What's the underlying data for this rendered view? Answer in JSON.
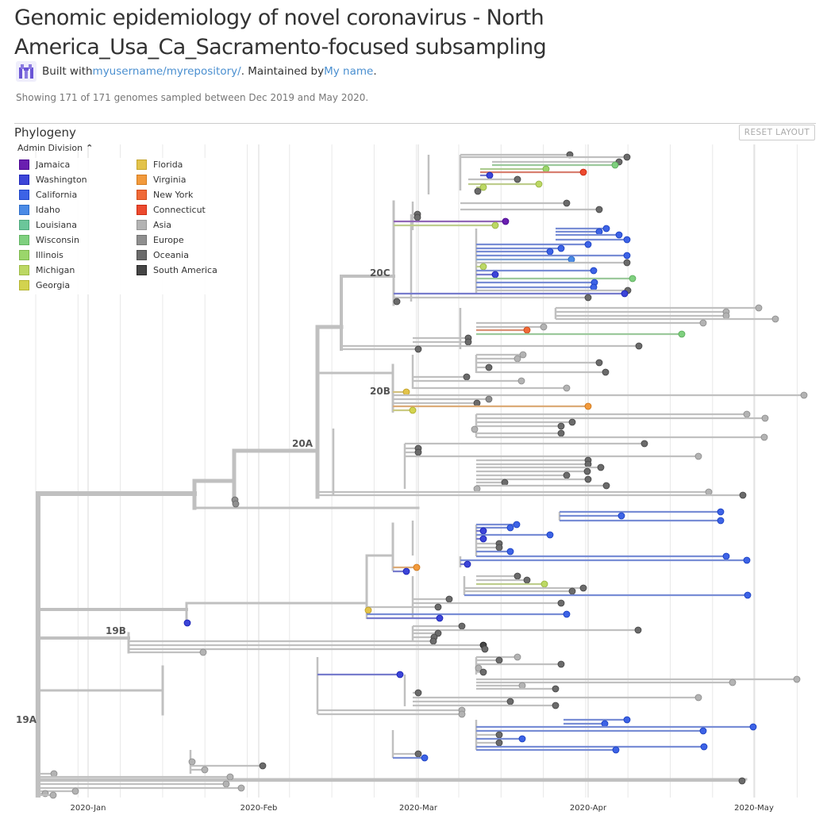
{
  "header": {
    "title": "Genomic epidemiology of novel coronavirus - North America_Usa_Ca_Sacramento-focused subsampling",
    "built_with": "Built with ",
    "repo_link": "myusername/myrepository/",
    "maintained_by": ". Maintained by ",
    "maintainer_link": "My name",
    "period": "."
  },
  "summary": "Showing 171 of 171 genomes sampled between Dec 2019 and May 2020.",
  "panel": {
    "title": "Phylogeny",
    "reset_label": "RESET LAYOUT",
    "color_by": "Admin Division"
  },
  "legend": [
    {
      "label": "Jamaica",
      "color": "#6a1fb0"
    },
    {
      "label": "Washington",
      "color": "#3c45d8"
    },
    {
      "label": "California",
      "color": "#3d63e6"
    },
    {
      "label": "Idaho",
      "color": "#4b8be6"
    },
    {
      "label": "Louisiana",
      "color": "#6bc69a"
    },
    {
      "label": "Wisconsin",
      "color": "#7fd07f"
    },
    {
      "label": "Illinois",
      "color": "#9bd66b"
    },
    {
      "label": "Michigan",
      "color": "#bcd864"
    },
    {
      "label": "Georgia",
      "color": "#d3d34f"
    },
    {
      "label": "Florida",
      "color": "#e3c34a"
    },
    {
      "label": "Virginia",
      "color": "#f29a3c"
    },
    {
      "label": "New York",
      "color": "#f06a38"
    },
    {
      "label": "Connecticut",
      "color": "#ec4a2f"
    },
    {
      "label": "Asia",
      "color": "#b3b3b3"
    },
    {
      "label": "Europe",
      "color": "#8f8f8f"
    },
    {
      "label": "Oceania",
      "color": "#6b6b6b"
    },
    {
      "label": "South America",
      "color": "#454545"
    }
  ],
  "axis": {
    "ticks": [
      "2020-Jan",
      "2020-Feb",
      "2020-Mar",
      "2020-Apr",
      "2020-May"
    ]
  },
  "clades": [
    "20C",
    "20B",
    "20A",
    "19B",
    "19A"
  ]
}
